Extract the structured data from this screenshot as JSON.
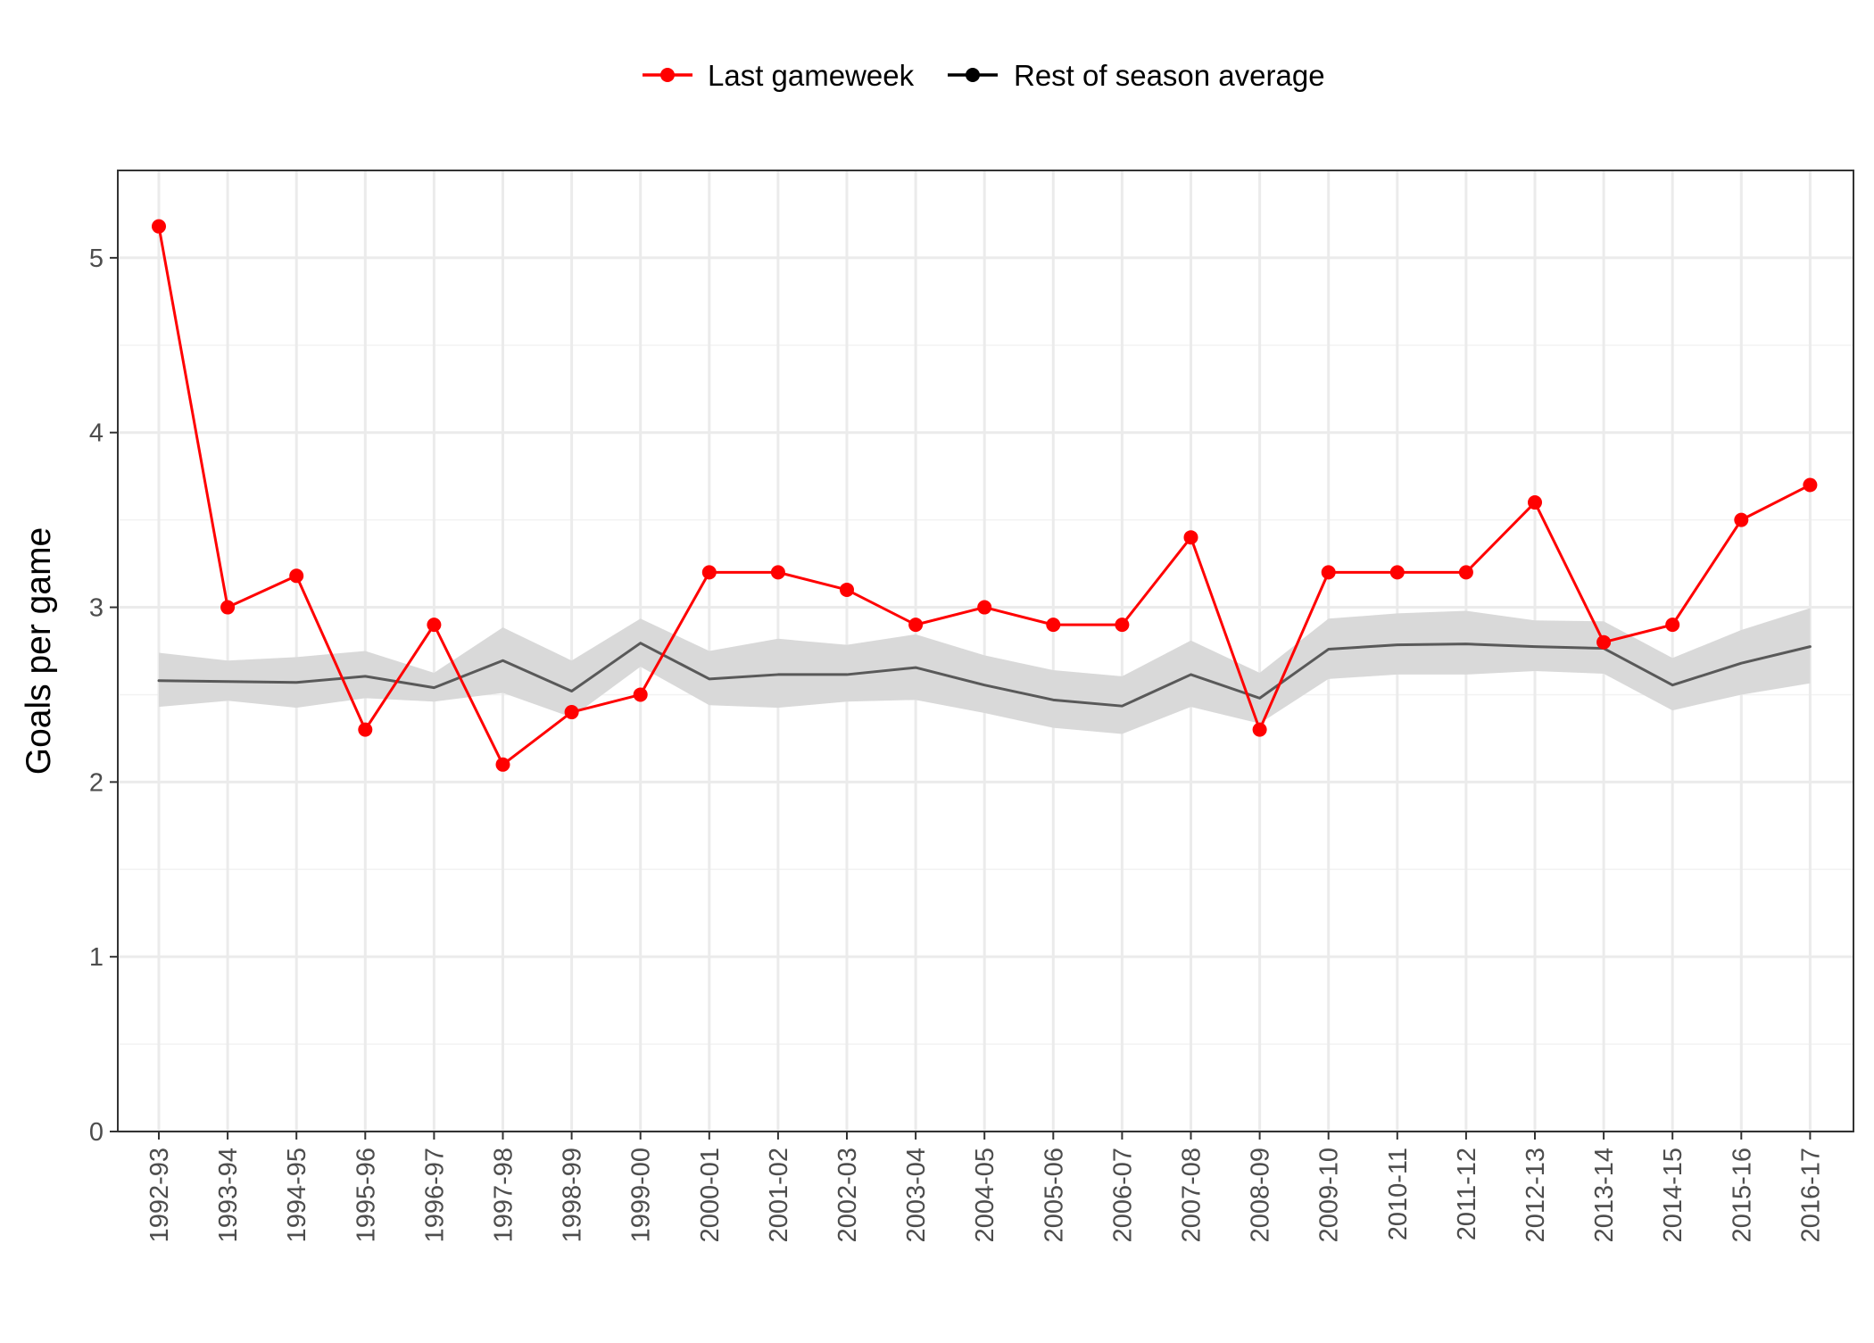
{
  "chart_data": {
    "type": "line",
    "title": "",
    "xlabel": "",
    "ylabel": "Goals per game",
    "ylim": [
      0,
      5.5
    ],
    "yticks": [
      0,
      1,
      2,
      3,
      4,
      5
    ],
    "grid": true,
    "legend_position": "top",
    "categories": [
      "1992-93",
      "1993-94",
      "1994-95",
      "1995-96",
      "1996-97",
      "1997-98",
      "1998-99",
      "1999-00",
      "2000-01",
      "2001-02",
      "2002-03",
      "2003-04",
      "2004-05",
      "2005-06",
      "2006-07",
      "2007-08",
      "2008-09",
      "2009-10",
      "2010-11",
      "2011-12",
      "2012-13",
      "2013-14",
      "2014-15",
      "2015-16",
      "2016-17"
    ],
    "series": [
      {
        "name": "Last gameweek",
        "color": "#ff0000",
        "values": [
          5.18,
          3.0,
          3.18,
          2.3,
          2.9,
          2.1,
          2.4,
          2.5,
          3.2,
          3.2,
          3.1,
          2.9,
          3.0,
          2.9,
          2.9,
          3.4,
          2.3,
          3.2,
          3.2,
          3.2,
          3.6,
          2.8,
          2.9,
          3.5,
          3.7
        ]
      },
      {
        "name": "Rest of season average",
        "color": "#595959",
        "values": [
          2.58,
          2.575,
          2.57,
          2.605,
          2.54,
          2.695,
          2.52,
          2.795,
          2.59,
          2.615,
          2.615,
          2.655,
          2.555,
          2.47,
          2.435,
          2.615,
          2.48,
          2.76,
          2.785,
          2.79,
          2.775,
          2.765,
          2.555,
          2.68,
          2.775
        ],
        "band_lower": [
          2.43,
          2.465,
          2.425,
          2.48,
          2.46,
          2.51,
          2.37,
          2.66,
          2.44,
          2.425,
          2.46,
          2.47,
          2.395,
          2.31,
          2.275,
          2.43,
          2.335,
          2.59,
          2.615,
          2.615,
          2.635,
          2.62,
          2.41,
          2.5,
          2.565
        ],
        "band_upper": [
          2.74,
          2.695,
          2.715,
          2.75,
          2.625,
          2.885,
          2.695,
          2.935,
          2.75,
          2.82,
          2.785,
          2.845,
          2.725,
          2.64,
          2.605,
          2.81,
          2.625,
          2.935,
          2.965,
          2.98,
          2.925,
          2.92,
          2.71,
          2.87,
          2.995
        ]
      }
    ],
    "band_color": "#d9d9d9"
  }
}
